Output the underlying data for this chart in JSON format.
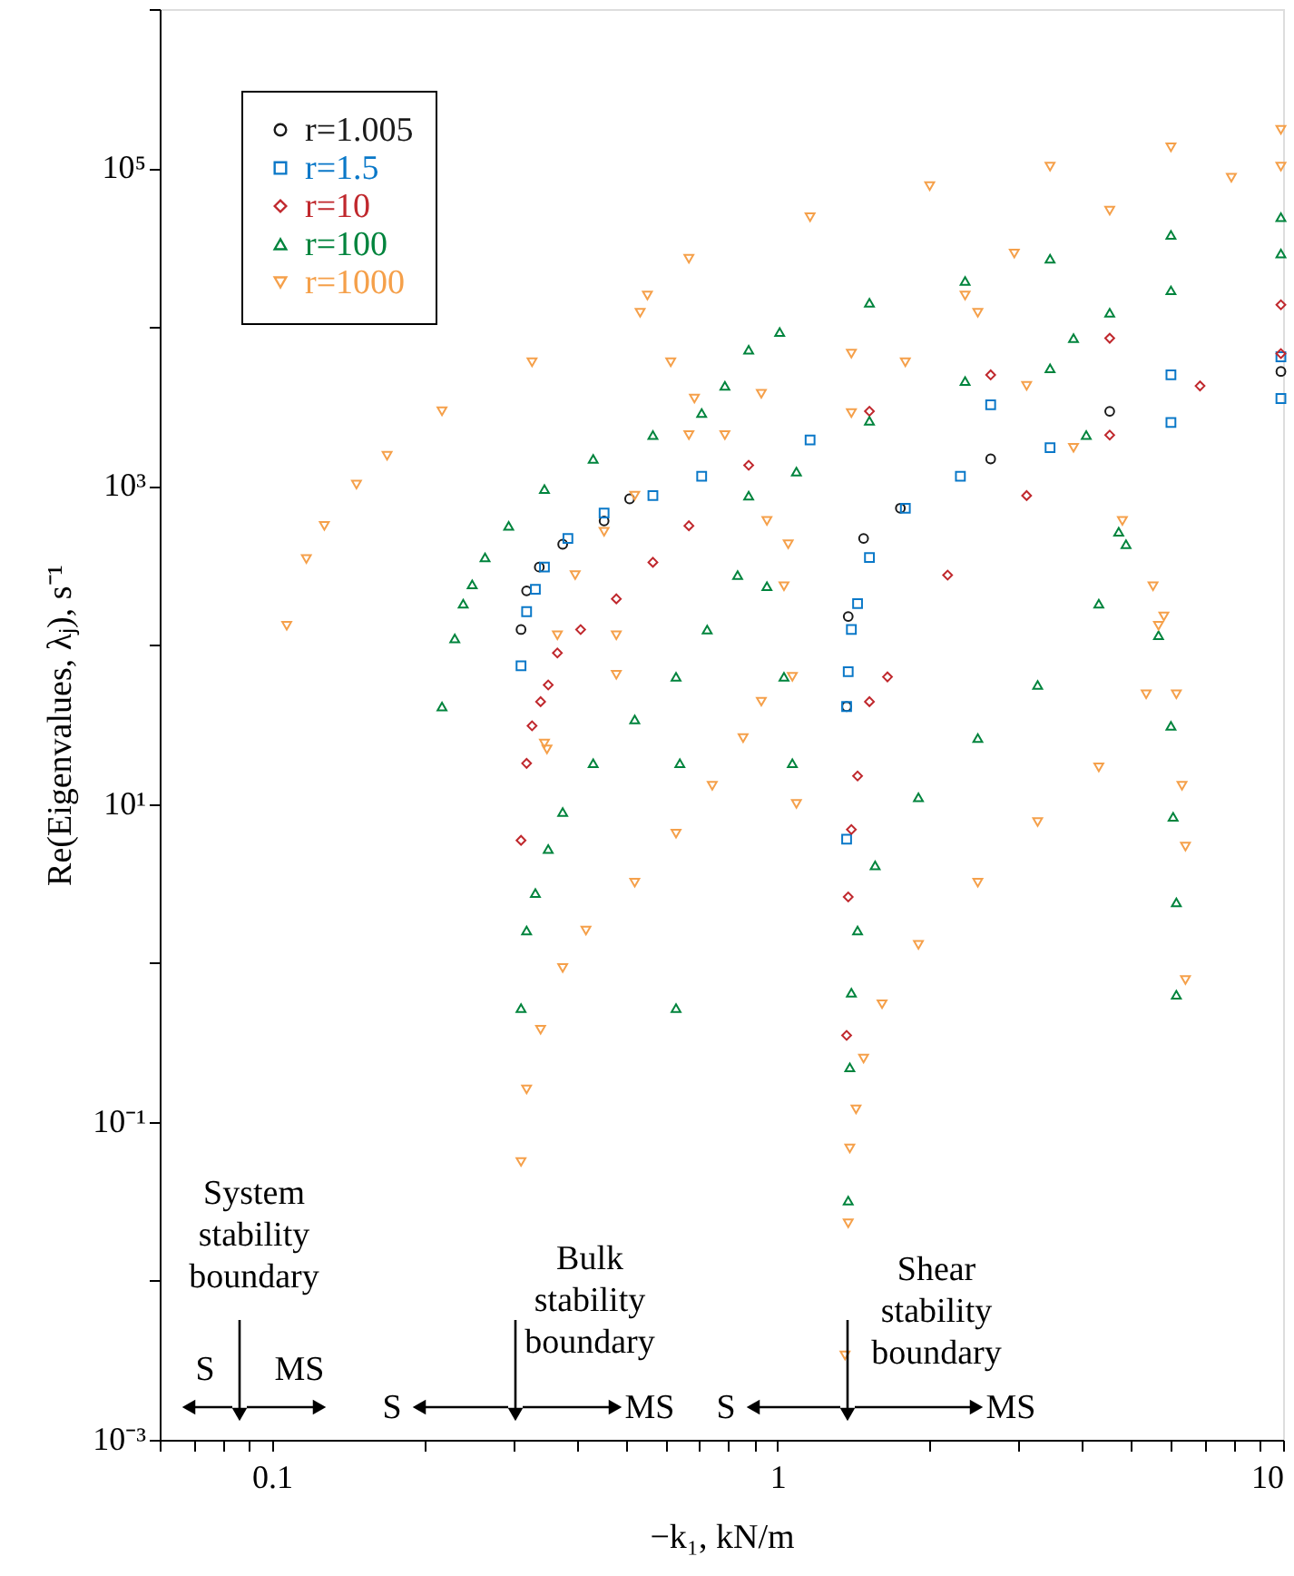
{
  "chart_data": {
    "type": "scatter",
    "xlabel": "−k₁, kN/m",
    "ylabel": "Re(Eigenvalues, λⱼ), s⁻¹",
    "log": "xy",
    "grid": false,
    "legend": "top left",
    "xlim": [
      0.06,
      10
    ],
    "ylim": [
      0.001,
      1000000
    ],
    "xticks": [
      {
        "value": 0.06,
        "label": null
      },
      {
        "value": 0.07,
        "label": null
      },
      {
        "value": 0.08,
        "label": null
      },
      {
        "value": 0.09,
        "label": null
      },
      0.1,
      {
        "value": 0.2,
        "label": null
      },
      {
        "value": 0.3,
        "label": null
      },
      {
        "value": 0.4,
        "label": null
      },
      {
        "value": 0.5,
        "label": null
      },
      {
        "value": 0.6,
        "label": null
      },
      {
        "value": 0.7,
        "label": null
      },
      {
        "value": 0.8,
        "label": null
      },
      {
        "value": 0.9,
        "label": null
      },
      1,
      {
        "value": 2,
        "label": null
      },
      {
        "value": 3,
        "label": null
      },
      {
        "value": 4,
        "label": null
      },
      {
        "value": 5,
        "label": null
      },
      {
        "value": 6,
        "label": null
      },
      {
        "value": 7,
        "label": null
      },
      {
        "value": 8,
        "label": null
      },
      {
        "value": 9,
        "label": null
      },
      10
    ],
    "yticks": [
      {
        "value": 0.001,
        "label": "10⁻³"
      },
      {
        "value": 0.01,
        "label": null
      },
      {
        "value": 0.1,
        "label": "10⁻¹"
      },
      {
        "value": 1,
        "label": null
      },
      {
        "value": 10,
        "label": "10¹"
      },
      {
        "value": 100,
        "label": null
      },
      {
        "value": 1000,
        "label": "10³"
      },
      {
        "value": 10000,
        "label": null
      },
      {
        "value": 100000,
        "label": "10⁵"
      },
      {
        "value": 1000000,
        "label": null
      }
    ],
    "series": [
      {
        "name": "r=1.005",
        "color": "#1a1a1a",
        "marker": "circle",
        "x": [
          0.311,
          0.319,
          0.338,
          0.376,
          0.454,
          0.51,
          1.37,
          1.38,
          1.48,
          1.75,
          2.64,
          4.54,
          9.9
        ],
        "values": [
          125,
          219,
          309,
          430,
          603,
          830,
          41,
          151,
          468,
          725,
          1480,
          2950,
          5250
        ]
      },
      {
        "name": "r=1.5",
        "color": "#0a78c8",
        "marker": "square",
        "x": [
          0.311,
          0.319,
          0.332,
          0.346,
          0.385,
          0.454,
          0.567,
          0.708,
          1.16,
          2.64,
          6.0,
          9.9,
          1.37,
          1.37,
          1.38,
          1.4,
          1.44,
          1.52,
          1.79,
          2.3,
          3.46,
          6.0,
          9.9
        ],
        "values": [
          74,
          162,
          224,
          309,
          468,
          676,
          870,
          1150,
          1950,
          3240,
          5000,
          6500,
          6.0,
          41,
          68,
          125,
          182,
          355,
          725,
          1150,
          1740,
          2510,
          3550
        ]
      },
      {
        "name": "r=10",
        "color": "#c0282d",
        "marker": "diamond",
        "x": [
          0.311,
          0.319,
          0.327,
          0.34,
          0.352,
          0.367,
          0.408,
          0.48,
          0.567,
          0.668,
          0.877,
          1.52,
          2.64,
          4.54,
          9.9,
          1.37,
          1.38,
          1.4,
          1.44,
          1.52,
          1.65,
          2.17,
          3.11,
          4.54,
          6.85,
          9.9
        ],
        "values": [
          5.9,
          18,
          31,
          44,
          56,
          89,
          125,
          195,
          331,
          562,
          1350,
          2950,
          5000,
          8500,
          13800,
          0.35,
          2.6,
          6.9,
          15,
          44,
          63,
          275,
          870,
          2090,
          4260,
          6800
        ]
      },
      {
        "name": "r=100",
        "color": "#00843d",
        "marker": "triangle",
        "x": [
          0.217,
          0.23,
          0.239,
          0.249,
          0.264,
          0.294,
          0.346,
          0.432,
          0.567,
          0.708,
          0.787,
          0.877,
          1.01,
          1.52,
          2.35,
          3.46,
          6.0,
          9.9,
          0.877,
          0.953,
          1.03,
          1.07,
          0.311,
          0.319,
          0.332,
          0.352,
          0.376,
          0.432,
          0.522,
          0.63,
          0.726,
          0.834,
          1.09,
          1.52,
          2.35,
          3.46,
          3.85,
          4.54,
          6.0,
          9.9,
          4.08,
          4.73,
          4.89,
          5.67,
          6.0,
          6.06,
          6.15,
          6.15,
          1.38,
          1.39,
          1.4,
          1.44,
          1.56,
          1.9,
          2.49,
          3.27,
          4.32,
          0.63,
          0.641
        ],
        "values": [
          41,
          110,
          182,
          240,
          355,
          562,
          955,
          1480,
          2090,
          2880,
          4260,
          7200,
          9300,
          14200,
          19500,
          26900,
          38000,
          49000,
          870,
          234,
          63,
          18,
          0.52,
          1.6,
          2.75,
          5.2,
          8.9,
          18,
          34,
          63,
          125,
          275,
          1230,
          2570,
          4570,
          5500,
          8500,
          12300,
          17000,
          29000,
          2090,
          515,
          430,
          115,
          31,
          8.3,
          2.4,
          0.63,
          0.032,
          0.22,
          0.65,
          1.6,
          4.1,
          11,
          26,
          56,
          182,
          0.52,
          18
        ]
      },
      {
        "name": "r=1000",
        "color": "#f5a04a",
        "marker": "triangle-down",
        "x": [
          0.107,
          0.117,
          0.127,
          0.147,
          0.169,
          0.217,
          0.327,
          0.535,
          0.553,
          0.668,
          1.16,
          2.0,
          3.46,
          6.0,
          9.9,
          0.615,
          0.685,
          0.787,
          0.953,
          1.03,
          1.07,
          1.09,
          0.311,
          0.319,
          0.34,
          0.376,
          0.418,
          0.522,
          0.63,
          0.743,
          0.855,
          0.929,
          1.05,
          1.4,
          1.79,
          0.346,
          0.367,
          0.398,
          0.454,
          0.522,
          0.668,
          0.929,
          1.4,
          2.35,
          2.94,
          4.54,
          7.9,
          9.9,
          2.49,
          3.11,
          3.85,
          4.81,
          5.53,
          5.81,
          6.15,
          6.31,
          6.41,
          6.41,
          1.38,
          1.39,
          1.43,
          1.48,
          1.61,
          1.9,
          2.49,
          3.27,
          4.32,
          5.36,
          5.67,
          1.36,
          0.48,
          0.48,
          0.35
        ],
        "values": [
          132,
          347,
          562,
          1020,
          1550,
          2950,
          6000,
          12300,
          15800,
          26900,
          49000,
          77000,
          102000,
          135000,
          174000,
          6000,
          3550,
          2090,
          603,
          234,
          63,
          10,
          0.056,
          0.16,
          0.38,
          0.93,
          1.6,
          3.2,
          6.5,
          13,
          26,
          44,
          430,
          2880,
          6000,
          24,
          115,
          275,
          515,
          870,
          2090,
          3800,
          6800,
          15800,
          29000,
          54000,
          87000,
          102000,
          12300,
          4260,
          1740,
          603,
          234,
          151,
          49,
          13,
          5.4,
          0.78,
          0.023,
          0.068,
          0.12,
          0.25,
          0.55,
          1.3,
          3.2,
          7.7,
          17,
          49,
          132,
          0.0034,
          115,
          65,
          22
        ]
      }
    ],
    "annotations": [
      "System stability boundary",
      "S",
      "MS",
      "Bulk stability boundary",
      "S",
      "MS",
      "Shear stability boundary",
      "S",
      "MS"
    ]
  }
}
